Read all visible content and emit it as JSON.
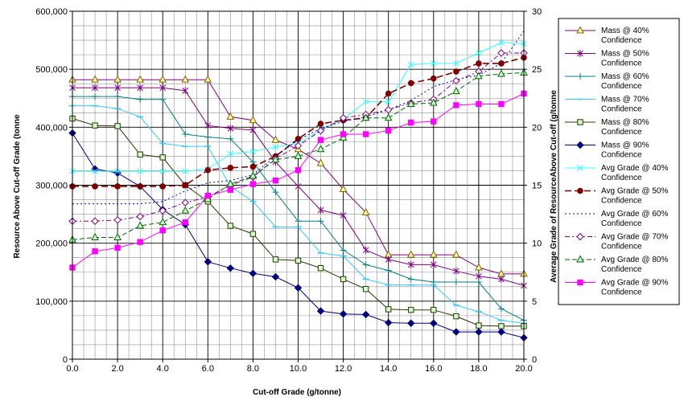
{
  "chart_data": {
    "type": "line",
    "xlabel": "Cut-off Grade (g/tonne)",
    "ylabel": "Resource Above Cut-off Grade (tonne",
    "y2label": "Average Grade of ResourceAbove Cut-off (g/tonne",
    "xlim": [
      0,
      20
    ],
    "ylim": [
      0,
      600000
    ],
    "y2lim": [
      0,
      30
    ],
    "x_ticks": [
      "0.0",
      "2.0",
      "4.0",
      "6.0",
      "8.0",
      "10.0",
      "12.0",
      "14.0",
      "16.0",
      "18.0",
      "20.0"
    ],
    "y_ticks": [
      "0",
      "100,000",
      "200,000",
      "300,000",
      "400,000",
      "500,000",
      "600,000"
    ],
    "y2_ticks": [
      "0",
      "5",
      "10",
      "15",
      "20",
      "25",
      "30"
    ],
    "grid": true,
    "legend_position": "right",
    "x": [
      0,
      1,
      2,
      3,
      4,
      5,
      6,
      7,
      8,
      9,
      10,
      11,
      12,
      13,
      14,
      15,
      16,
      17,
      18,
      19,
      20
    ],
    "series": [
      {
        "name": "Mass @ 40%\nConfidence",
        "axis": "left",
        "color": "#800080",
        "marker": "triangle",
        "marker_fill": "#ffff99",
        "marker_stroke": "#806000",
        "dash": "solid",
        "values": [
          482000,
          482000,
          482000,
          482000,
          482000,
          482000,
          482000,
          418000,
          412000,
          378000,
          362000,
          338000,
          293000,
          253000,
          180000,
          180000,
          180000,
          180000,
          158000,
          147000,
          147000
        ]
      },
      {
        "name": "Mass @ 50%\nConfidence",
        "axis": "left",
        "color": "#800080",
        "marker": "star",
        "marker_fill": "#800080",
        "marker_stroke": "#800080",
        "dash": "solid",
        "values": [
          468000,
          468000,
          468000,
          468000,
          468000,
          463000,
          403000,
          398000,
          395000,
          340000,
          298000,
          257000,
          248000,
          188000,
          172000,
          163000,
          163000,
          152000,
          143000,
          138000,
          127000
        ]
      },
      {
        "name": "Mass @ 60%\nConfidence",
        "axis": "left",
        "color": "#008080",
        "marker": "plus",
        "marker_fill": "#008080",
        "marker_stroke": "#008080",
        "dash": "solid",
        "values": [
          453000,
          453000,
          453000,
          448000,
          448000,
          388000,
          383000,
          380000,
          340000,
          288000,
          238000,
          238000,
          188000,
          163000,
          153000,
          138000,
          133000,
          133000,
          133000,
          87000,
          67000
        ]
      },
      {
        "name": "Mass @ 70%\nConfidence",
        "axis": "left",
        "color": "#33ccff",
        "marker": "dash",
        "marker_fill": "#33ccff",
        "marker_stroke": "#33ccff",
        "dash": "solid",
        "values": [
          437000,
          437000,
          432000,
          418000,
          372000,
          367000,
          367000,
          298000,
          272000,
          228000,
          228000,
          183000,
          178000,
          138000,
          128000,
          128000,
          128000,
          93000,
          82000,
          67000,
          62000
        ]
      },
      {
        "name": "Mass @ 80%\nConfidence",
        "axis": "left",
        "color": "#333300",
        "marker": "square",
        "marker_fill": "#ccffcc",
        "marker_stroke": "#333300",
        "dash": "solid",
        "values": [
          415000,
          403000,
          402000,
          353000,
          348000,
          300000,
          272000,
          230000,
          216000,
          172000,
          170000,
          157000,
          138000,
          121000,
          86000,
          85000,
          85000,
          74000,
          58000,
          57000,
          57000
        ]
      },
      {
        "name": "Mass @ 90%\nConfidence",
        "axis": "left",
        "color": "#000080",
        "marker": "diamond",
        "marker_fill": "#000080",
        "marker_stroke": "#000080",
        "dash": "solid",
        "values": [
          390000,
          328000,
          321000,
          298000,
          258000,
          232000,
          168000,
          157000,
          148000,
          142000,
          123000,
          83000,
          78000,
          77000,
          63000,
          62000,
          62000,
          47000,
          47000,
          47000,
          37000
        ]
      },
      {
        "name": "Avg Grade @ 40%\nConfidence",
        "axis": "right",
        "color": "#33ffff",
        "marker": "x",
        "marker_fill": "#33ffff",
        "marker_stroke": "#33ffff",
        "dash": "solid",
        "values": [
          16.2,
          16.2,
          16.2,
          16.2,
          16.2,
          16.2,
          16.4,
          17.7,
          17.9,
          18.3,
          18.6,
          19.8,
          20.7,
          22.2,
          22.2,
          25.4,
          25.5,
          25.5,
          26.4,
          27.3,
          27.2
        ]
      },
      {
        "name": "Avg Grade @ 50%\nConfidence",
        "axis": "right",
        "color": "#800000",
        "marker": "circle",
        "marker_fill": "#800000",
        "marker_stroke": "#800000",
        "dash": "8,4",
        "values": [
          14.9,
          14.9,
          14.9,
          14.9,
          14.9,
          15.0,
          16.3,
          16.5,
          16.6,
          17.5,
          19.0,
          20.3,
          20.6,
          20.8,
          22.9,
          23.8,
          24.2,
          24.8,
          25.5,
          25.5,
          26.0
        ]
      },
      {
        "name": "Avg Grade @ 60%\nConfidence",
        "axis": "right",
        "color": "#0000cc",
        "marker": "none",
        "marker_fill": "#0000cc",
        "marker_stroke": "#0000cc",
        "dash": "2,3",
        "values": [
          13.4,
          13.4,
          13.4,
          13.4,
          13.6,
          14.5,
          15.2,
          15.4,
          15.9,
          17.5,
          18.9,
          19.9,
          20.5,
          20.9,
          21.5,
          22.3,
          23.5,
          24.1,
          24.5,
          25.5,
          28.3
        ]
      },
      {
        "name": "Avg Grade @ 70%\nConfidence",
        "axis": "right",
        "color": "#800080",
        "marker": "diamond",
        "marker_fill": "#ffffff",
        "marker_stroke": "#800080",
        "dash": "6,3,2,3",
        "values": [
          11.9,
          11.9,
          12.0,
          12.3,
          12.8,
          13.5,
          14.0,
          15.0,
          15.7,
          17.3,
          18.4,
          19.7,
          20.8,
          21.1,
          21.5,
          22.1,
          22.4,
          24.0,
          24.8,
          26.4,
          26.4
        ]
      },
      {
        "name": "Avg Grade @ 80%\nConfidence",
        "axis": "right",
        "color": "#006600",
        "marker": "triangle",
        "marker_fill": "#ccffcc",
        "marker_stroke": "#006600",
        "dash": "6,3",
        "values": [
          10.3,
          10.5,
          10.5,
          11.5,
          11.8,
          12.8,
          13.8,
          15.1,
          15.8,
          17.2,
          17.5,
          18.1,
          19.1,
          20.8,
          20.8,
          22.0,
          22.1,
          23.1,
          24.4,
          24.6,
          24.7
        ]
      },
      {
        "name": "Avg Grade @ 90%\nConfidence",
        "axis": "right",
        "color": "#ff00ff",
        "marker": "square",
        "marker_fill": "#ff00ff",
        "marker_stroke": "#ff00ff",
        "dash": "solid",
        "values": [
          7.9,
          9.3,
          9.6,
          10.1,
          11.1,
          11.8,
          14.1,
          14.6,
          15.1,
          15.4,
          16.3,
          18.9,
          19.4,
          19.4,
          19.7,
          20.4,
          20.5,
          21.9,
          22.0,
          22.0,
          22.9
        ]
      }
    ]
  }
}
